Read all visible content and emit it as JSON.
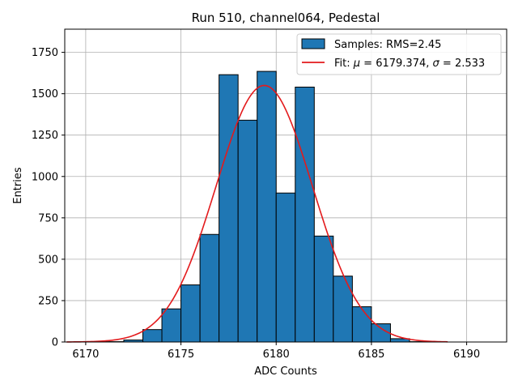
{
  "chart_data": {
    "type": "bar",
    "title": "Run 510, channel064, Pedestal",
    "xlabel": "ADC Counts",
    "ylabel": "Entries",
    "xlim": [
      6168.9,
      6192.1
    ],
    "ylim": [
      0,
      1890
    ],
    "x_ticks": [
      6170,
      6175,
      6180,
      6185,
      6190
    ],
    "y_ticks": [
      0,
      250,
      500,
      750,
      1000,
      1250,
      1500,
      1750
    ],
    "grid": true,
    "legend_position": "top-right",
    "bin_width": 1,
    "histogram": {
      "name": "Samples: RMS=2.45",
      "color": "#1f77b4",
      "edgecolor": "#000000",
      "bin_left_edges": [
        6169,
        6170,
        6171,
        6172,
        6173,
        6174,
        6175,
        6176,
        6177,
        6178,
        6179,
        6180,
        6181,
        6182,
        6183,
        6184,
        6185,
        6186,
        6187,
        6188,
        6189,
        6190
      ],
      "counts": [
        0,
        0,
        2,
        12,
        75,
        200,
        345,
        650,
        1615,
        1340,
        1635,
        900,
        1540,
        640,
        398,
        213,
        110,
        20,
        2,
        0,
        0,
        0
      ]
    },
    "fit": {
      "name": "Fit: μ = 6179.374, σ = 2.533",
      "legend_prefix": "Fit: ",
      "mu_label": "μ",
      "mu_value": "6179.374",
      "sigma_label": "σ",
      "sigma_value": "2.533",
      "color": "#e31a1c",
      "amplitude": 1550,
      "mu": 6179.374,
      "sigma": 2.533,
      "x_range": [
        6169,
        6189
      ]
    }
  }
}
